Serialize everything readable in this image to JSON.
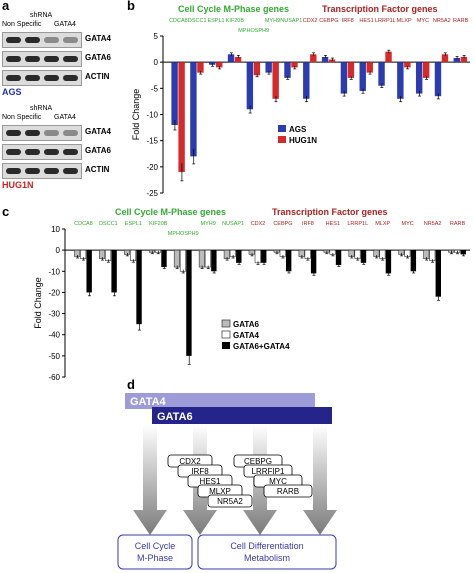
{
  "panel_a": {
    "letter": "a",
    "groups": [
      {
        "shrna": "shRNA",
        "conditions": [
          "Non Specific",
          "GATA4"
        ],
        "rows": [
          "GATA4",
          "GATA6",
          "ACTIN"
        ],
        "cell_line": "AGS",
        "cell_color": "#2233aa"
      },
      {
        "shrna": "shRNA",
        "conditions": [
          "Non Specific",
          "GATA4"
        ],
        "rows": [
          "GATA4",
          "GATA6",
          "ACTIN"
        ],
        "cell_line": "HUG1N",
        "cell_color": "#cc2222"
      }
    ]
  },
  "chart_data": [
    {
      "panel": "b",
      "type": "bar",
      "ylabel": "Fold Change",
      "ylim": [
        -25,
        5
      ],
      "yticks": [
        5,
        0,
        -5,
        -10,
        -15,
        -20,
        -25
      ],
      "group_labels": [
        {
          "text": "Cell Cycle M-Phase genes",
          "color": "#33aa33"
        },
        {
          "text": "Transcription Factor genes",
          "color": "#aa2222"
        }
      ],
      "categories": [
        "CDCA8",
        "DSCC1",
        "ESPL1",
        "KIF20B",
        "MPHOSPH9",
        "MYH9",
        "NUSAP1",
        "CDX2",
        "CEBPG",
        "IRF8",
        "HES1",
        "LRRP1L",
        "MLXP",
        "MYC",
        "NR5A2",
        "RARB"
      ],
      "category_colors": [
        "#33aa33",
        "#33aa33",
        "#33aa33",
        "#33aa33",
        "#33aa33",
        "#33aa33",
        "#33aa33",
        "#aa2222",
        "#aa2222",
        "#aa2222",
        "#aa2222",
        "#aa2222",
        "#aa2222",
        "#aa2222",
        "#aa2222",
        "#aa2222"
      ],
      "series": [
        {
          "name": "AGS",
          "color": "#2b3bb0",
          "values": [
            -12,
            -18,
            -0.5,
            1.5,
            -9,
            -2,
            -3,
            -7,
            1,
            -6,
            -5.5,
            -4.5,
            -7,
            -6,
            -6.5,
            0.8
          ]
        },
        {
          "name": "HUG1N",
          "color": "#d62a2a",
          "values": [
            -21,
            -2,
            -1,
            1,
            -2.5,
            -7,
            -1,
            1.5,
            0.5,
            -3,
            -2,
            2,
            -1,
            -3,
            1.5,
            1
          ]
        }
      ],
      "legend": "center-right"
    },
    {
      "panel": "c",
      "type": "bar",
      "ylabel": "Fold Change",
      "ylim": [
        -60,
        10
      ],
      "yticks": [
        10,
        0,
        -10,
        -20,
        -30,
        -40,
        -50,
        -60
      ],
      "group_labels": [
        {
          "text": "Cell Cycle M-Phase genes",
          "color": "#33aa33"
        },
        {
          "text": "Transcription Factor genes",
          "color": "#aa2222"
        }
      ],
      "categories": [
        "CDCA8",
        "DSCC1",
        "ESPL1",
        "KIF20B",
        "MPHOSPH9",
        "MYH9",
        "NUSAP1",
        "CDX2",
        "CEBPG",
        "IRF8",
        "HES1",
        "LRRP1L",
        "MLXP",
        "MYC",
        "NR5A2",
        "RARB"
      ],
      "category_colors": [
        "#33aa33",
        "#33aa33",
        "#33aa33",
        "#33aa33",
        "#33aa33",
        "#33aa33",
        "#33aa33",
        "#aa2222",
        "#aa2222",
        "#aa2222",
        "#aa2222",
        "#aa2222",
        "#aa2222",
        "#aa2222",
        "#aa2222",
        "#aa2222"
      ],
      "series": [
        {
          "name": "GATA6",
          "color": "#bbbbbb",
          "values": [
            -3,
            -4,
            -2,
            -1,
            -8,
            -8,
            -4,
            -2,
            -1,
            -3,
            -1,
            -3,
            -3,
            -2,
            -4,
            -1
          ]
        },
        {
          "name": "GATA4",
          "color": "#ffffff",
          "values": [
            -4,
            -5,
            -5,
            -1,
            -10,
            -8,
            -3,
            -6,
            -3,
            -4,
            -2,
            -4,
            -4,
            -3,
            -5,
            -1
          ]
        },
        {
          "name": "GATA6+GATA4",
          "color": "#000000",
          "values": [
            -20,
            -20,
            -35,
            -8,
            -50,
            -10,
            -6,
            -6,
            -10,
            -11,
            -7,
            -6,
            -11,
            -10,
            -22,
            -2
          ]
        }
      ],
      "legend": "center"
    }
  ],
  "panel_b": {
    "letter": "b",
    "extra_label": "MPHOSPH9"
  },
  "panel_c": {
    "letter": "c",
    "extra_label": "MPHOSPH9"
  },
  "panel_d": {
    "letter": "d",
    "gata4": "GATA4",
    "gata6": "GATA6",
    "left_genes": [
      "CDX2",
      "IRF8",
      "HES1",
      "MLXP",
      "NR5A2"
    ],
    "right_genes": [
      "CEBPG",
      "LRRFIP1",
      "MYC",
      "RARB"
    ],
    "box_left": [
      "Cell Cycle",
      "M-Phase"
    ],
    "box_right": [
      "Cell Differentiation",
      "Metabolism"
    ]
  }
}
